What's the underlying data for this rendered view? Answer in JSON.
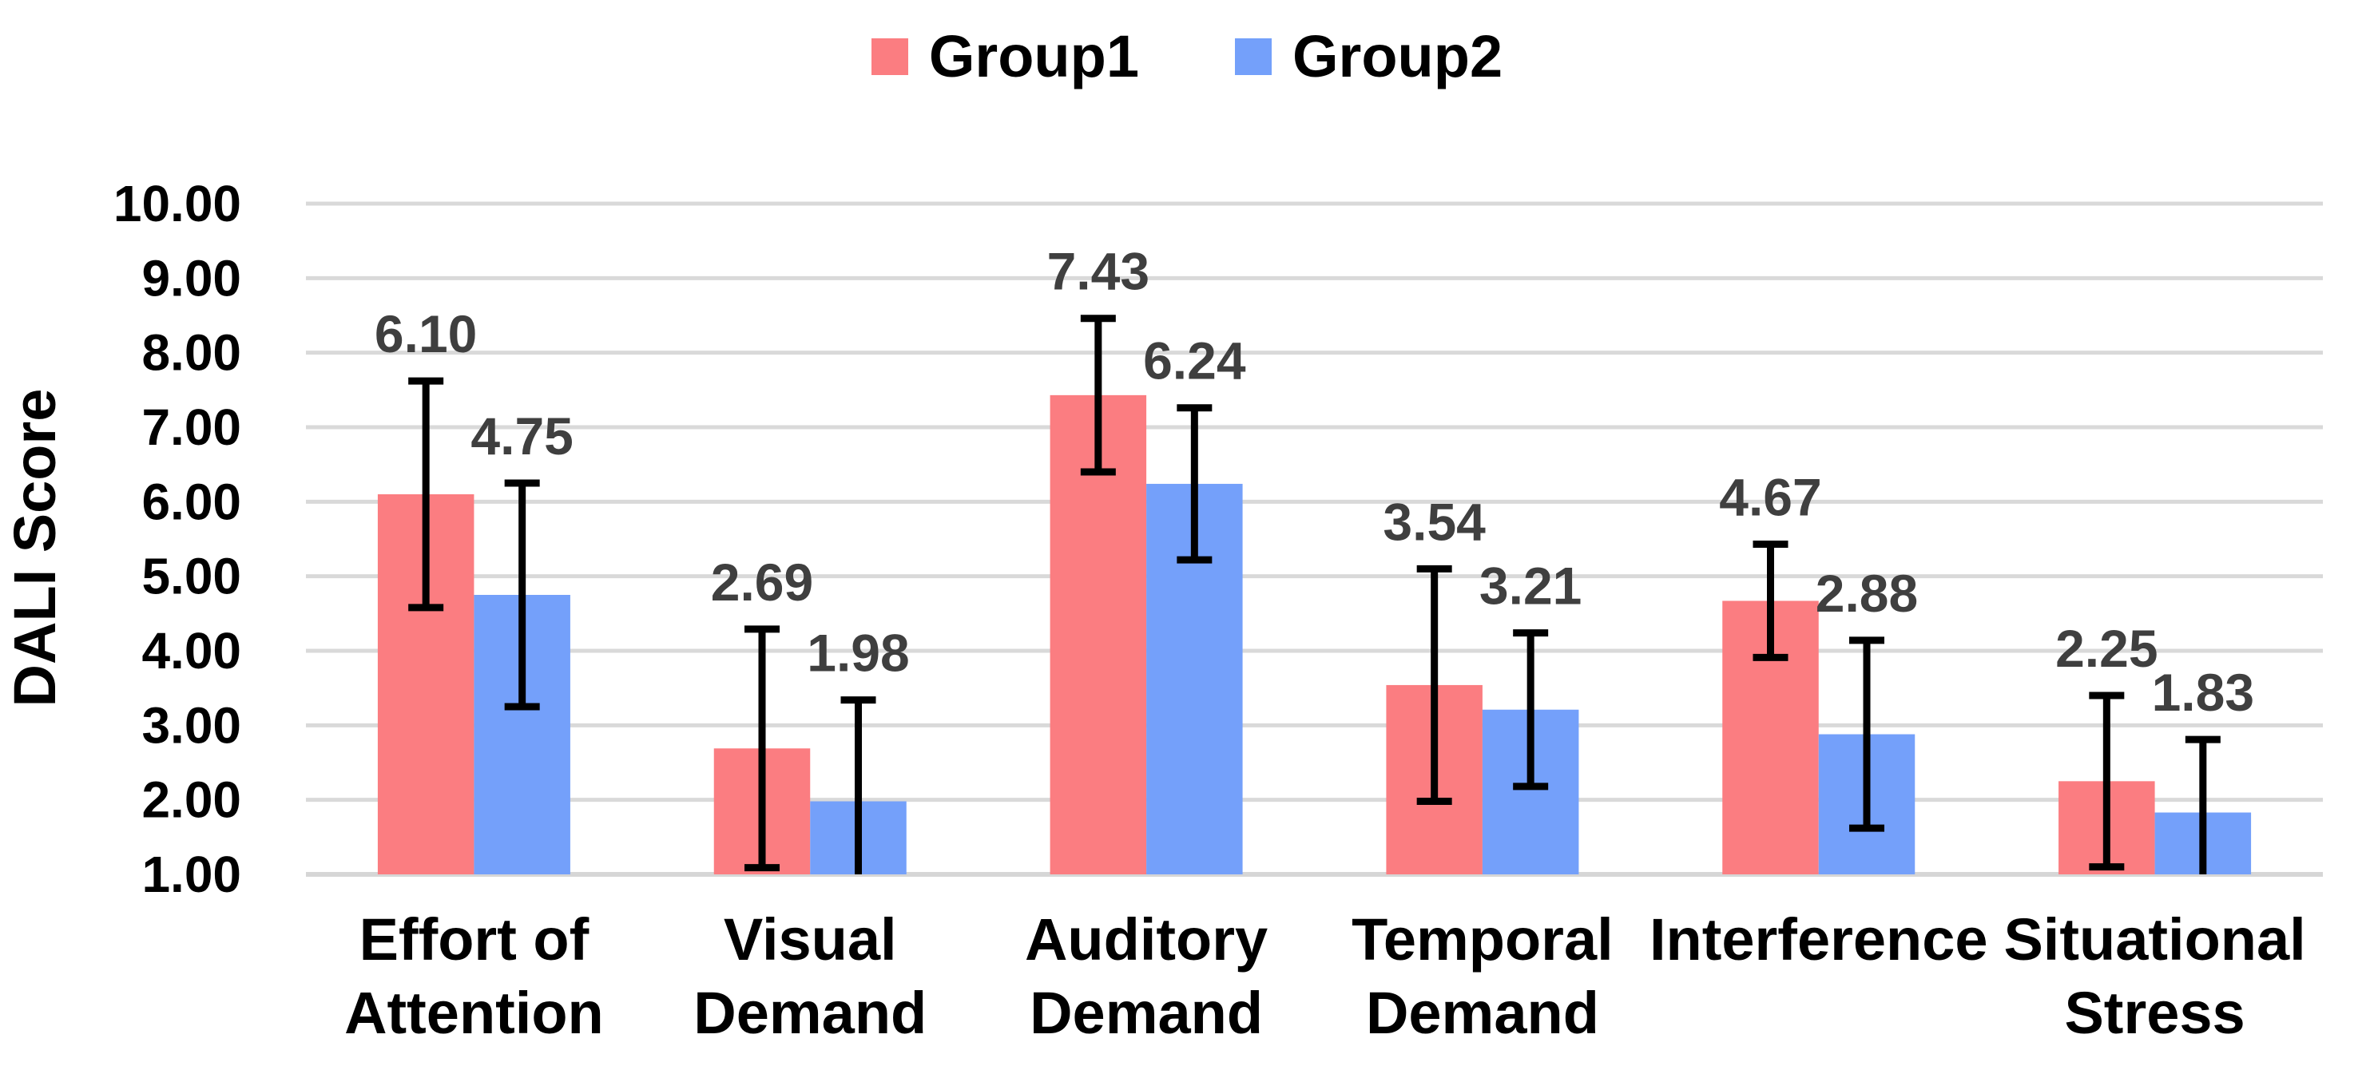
{
  "chart_data": {
    "type": "bar",
    "title": "",
    "ylabel": "DALI Score",
    "xlabel": "",
    "ylim": [
      1,
      10
    ],
    "ytick_step": 1,
    "yticks": [
      "1.00",
      "2.00",
      "3.00",
      "4.00",
      "5.00",
      "6.00",
      "7.00",
      "8.00",
      "9.00",
      "10.00"
    ],
    "grid": true,
    "legend_position": "top",
    "value_format": "0.00",
    "categories": [
      {
        "lines": [
          "Effort of",
          "Attention"
        ]
      },
      {
        "lines": [
          "Visual",
          "Demand"
        ]
      },
      {
        "lines": [
          "Auditory",
          "Demand"
        ]
      },
      {
        "lines": [
          "Temporal",
          "Demand"
        ]
      },
      {
        "lines": [
          "Interference"
        ]
      },
      {
        "lines": [
          "Situational",
          "Stress"
        ]
      }
    ],
    "series": [
      {
        "name": "Group1",
        "color": "#FB7D81",
        "values": [
          6.1,
          2.69,
          7.43,
          3.54,
          4.67,
          2.25
        ],
        "errors": [
          1.52,
          1.6,
          1.03,
          1.56,
          0.76,
          1.15
        ],
        "value_labels": [
          "6.10",
          "2.69",
          "7.43",
          "3.54",
          "4.67",
          "2.25"
        ]
      },
      {
        "name": "Group2",
        "color": "#74A0FA",
        "values": [
          4.75,
          1.98,
          6.24,
          3.21,
          2.88,
          1.83
        ],
        "errors": [
          1.5,
          1.36,
          1.02,
          1.03,
          1.26,
          0.98
        ],
        "value_labels": [
          "4.75",
          "1.98",
          "6.24",
          "3.21",
          "2.88",
          "1.83"
        ]
      }
    ],
    "styles": {
      "grid_color": "#D9D9D9",
      "axis_line_color": "#D6D6D6",
      "error_bar_color": "#000000",
      "data_label_color": "#3F3F3F",
      "tick_label_color": "#000000",
      "category_label_color": "#000000"
    }
  }
}
